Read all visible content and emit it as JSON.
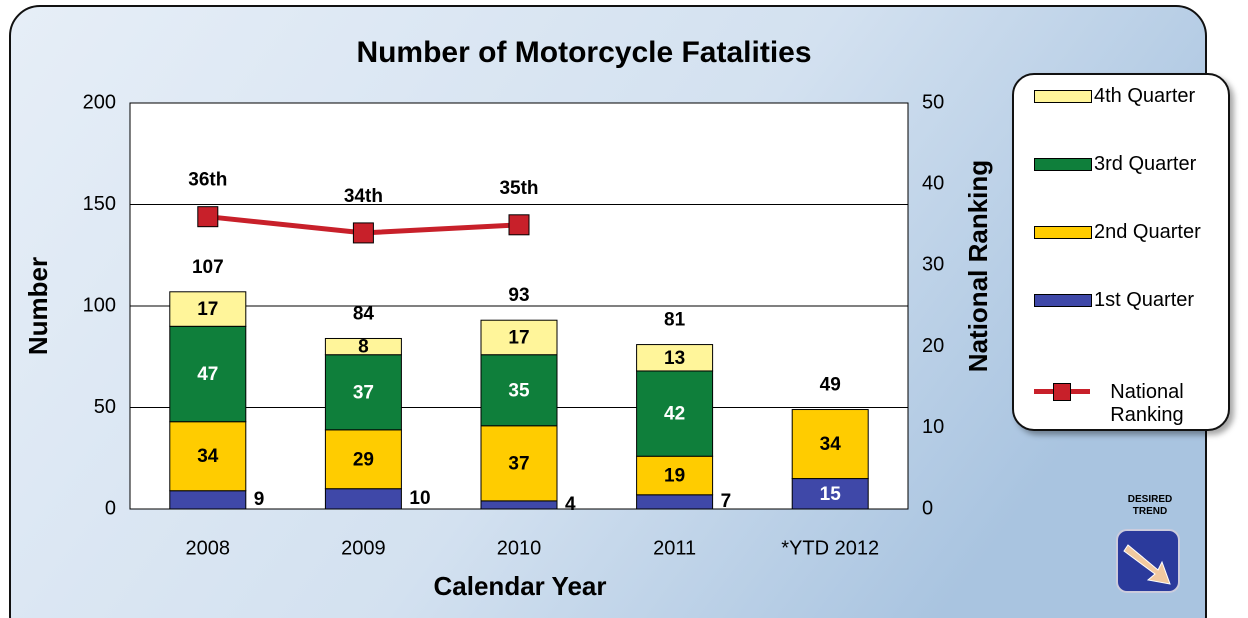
{
  "chart_data": {
    "type": "bar",
    "title": "Number of Motorcycle Fatalities",
    "xlabel": "Calendar Year",
    "ylabel": "Number",
    "y2label": "National Ranking",
    "annotation": "DESIRED TREND",
    "categories": [
      "2008",
      "2009",
      "2010",
      "2011",
      "*YTD 2012"
    ],
    "series": [
      {
        "name": "1st Quarter",
        "type": "bar",
        "color": "#3f48a8",
        "values": [
          9,
          10,
          4,
          7,
          15
        ]
      },
      {
        "name": "2nd Quarter",
        "type": "bar",
        "color": "#ffcc00",
        "values": [
          34,
          29,
          37,
          19,
          34
        ]
      },
      {
        "name": "3rd Quarter",
        "type": "bar",
        "color": "#0f7f3b",
        "values": [
          47,
          37,
          35,
          42,
          null
        ]
      },
      {
        "name": "4th Quarter",
        "type": "bar",
        "color": "#fff59a",
        "values": [
          17,
          8,
          17,
          13,
          null
        ]
      },
      {
        "name": "National Ranking",
        "type": "line",
        "axis": "y2",
        "color": "#c8202a",
        "values": [
          36,
          34,
          35,
          null,
          null
        ],
        "value_labels": [
          "36th",
          "34th",
          "35th",
          null,
          null
        ]
      }
    ],
    "totals": [
      107,
      84,
      93,
      81,
      49
    ],
    "ylim": [
      0,
      200
    ],
    "yticks": [
      0,
      50,
      100,
      150,
      200
    ],
    "y2lim": [
      0,
      50
    ],
    "y2ticks": [
      0,
      10,
      20,
      30,
      40,
      50
    ],
    "grid": true
  }
}
